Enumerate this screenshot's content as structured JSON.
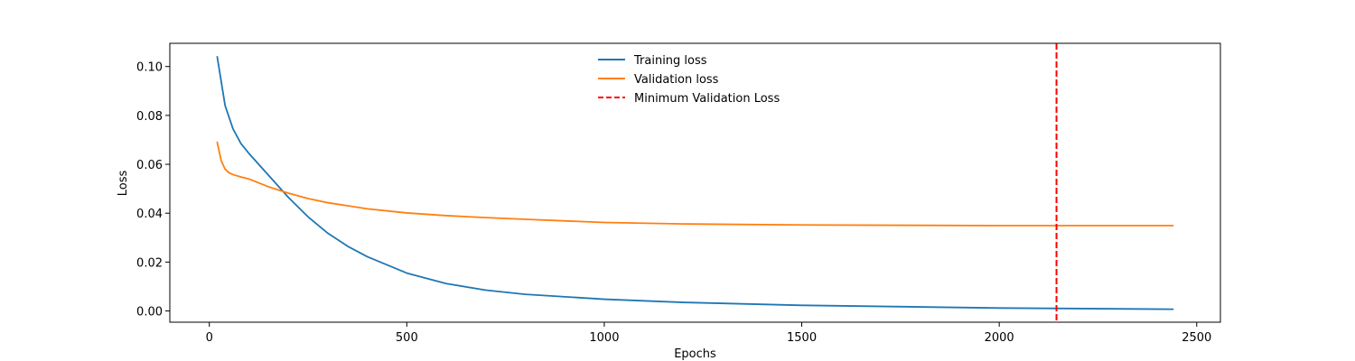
{
  "chart_data": {
    "type": "line",
    "xlabel": "Epochs",
    "ylabel": "Loss",
    "xlim": [
      -100,
      2560
    ],
    "ylim": [
      -0.0046,
      0.1095
    ],
    "xticks": [
      0,
      500,
      1000,
      1500,
      2000,
      2500
    ],
    "xtick_labels": [
      "0",
      "500",
      "1000",
      "1500",
      "2000",
      "2500"
    ],
    "yticks": [
      0.0,
      0.02,
      0.04,
      0.06,
      0.08,
      0.1
    ],
    "ytick_labels": [
      "0.00",
      "0.02",
      "0.04",
      "0.06",
      "0.08",
      "0.10"
    ],
    "grid": false,
    "legend_position": "top-center",
    "series": [
      {
        "name": "Training loss",
        "color": "#1f77b4",
        "style": "solid",
        "x": [
          20,
          40,
          60,
          80,
          100,
          150,
          200,
          250,
          300,
          350,
          400,
          500,
          600,
          700,
          800,
          1000,
          1200,
          1500,
          2000,
          2440
        ],
        "y": [
          0.104,
          0.084,
          0.0745,
          0.0685,
          0.0645,
          0.0555,
          0.0465,
          0.0385,
          0.0318,
          0.0265,
          0.0222,
          0.0155,
          0.0112,
          0.0085,
          0.0068,
          0.0048,
          0.0035,
          0.0023,
          0.0012,
          0.0007
        ]
      },
      {
        "name": "Validation loss",
        "color": "#ff7f0e",
        "style": "solid",
        "x": [
          20,
          30,
          40,
          50,
          60,
          80,
          100,
          150,
          200,
          250,
          300,
          400,
          500,
          600,
          700,
          800,
          1000,
          1200,
          1500,
          2000,
          2440
        ],
        "y": [
          0.069,
          0.0615,
          0.058,
          0.0565,
          0.0558,
          0.0548,
          0.054,
          0.0508,
          0.0482,
          0.046,
          0.0443,
          0.0418,
          0.0401,
          0.039,
          0.0382,
          0.0375,
          0.0362,
          0.0356,
          0.0352,
          0.0349,
          0.0349
        ]
      }
    ],
    "vlines": [
      {
        "name": "Minimum Validation Loss",
        "x": 2145,
        "color": "#ff0000",
        "style": "dashed"
      }
    ]
  }
}
